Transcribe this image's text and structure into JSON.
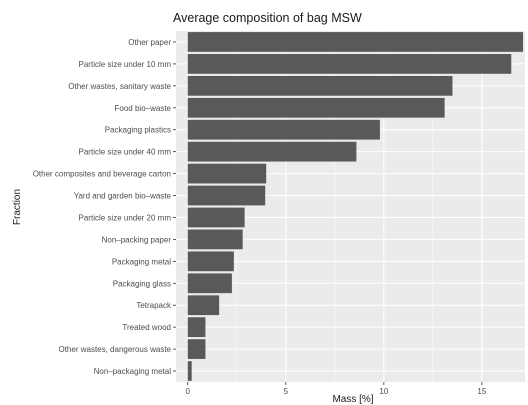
{
  "chart_data": {
    "type": "bar",
    "orientation": "horizontal",
    "title": "Average composition of bag MSW",
    "xlabel": "Mass [%]",
    "ylabel": "Fraction",
    "xlim": [
      -0.6,
      17.2
    ],
    "xticks": [
      0,
      5,
      10,
      15
    ],
    "grid": true,
    "legend": "none",
    "colors": {
      "bar": "#595959",
      "panel": "#ebebeb",
      "grid": "#ffffff"
    },
    "categories": [
      "Other paper",
      "Particle size under 10 mm",
      "Other wastes, sanitary waste",
      "Food bio–waste",
      "Packaging plastics",
      "Particle size under 40 mm",
      "Other composites and beverage carton",
      "Yard and garden bio–waste",
      "Particle size under 20 mm",
      "Non–packing paper",
      "Packaging metal",
      "Packaging glass",
      "Tetrapack",
      "Treated wood",
      "Other wastes, dangerous waste",
      "Non–packaging metal"
    ],
    "values": [
      17.1,
      16.5,
      13.5,
      13.1,
      9.8,
      8.6,
      4.0,
      3.95,
      2.9,
      2.8,
      2.35,
      2.25,
      1.6,
      0.9,
      0.9,
      0.2
    ]
  }
}
